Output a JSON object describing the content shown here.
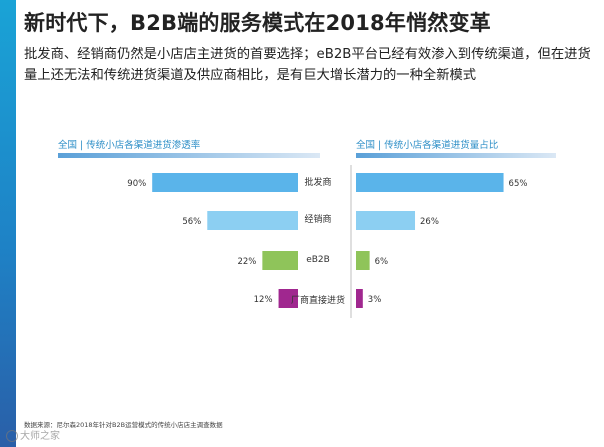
{
  "title": "新时代下，B2B端的服务模式在2018年悄然变革",
  "subtitle": "批发商、经销商仍然是小店店主进货的首要选择；eB2B平台已经有效渗入到传统渠道，但在进货量上还无法和传统进货渠道及供应商相比，是有巨大增长潜力的一种全新模式",
  "footnote": "数据来源：尼尔森2018年针对B2B运营模式的传统小店店主调查数据",
  "watermark": "大师之家",
  "colors": {
    "accent": "#2e8fc7",
    "side_strip": "#1e82c6",
    "bar_wholesaler": "#5ab4ea",
    "bar_distributor": "#8ccff2",
    "bar_eb2b": "#8fc45a",
    "bar_manufacturer": "#a0278f"
  },
  "chart_data": [
    {
      "type": "bar",
      "orientation": "horizontal",
      "direction": "right-to-left",
      "title": "全国 | 传统小店各渠道进货渗透率",
      "categories": [
        "批发商",
        "经销商",
        "eB2B",
        "厂商直接进货"
      ],
      "values": [
        90,
        56,
        22,
        12
      ],
      "value_labels": [
        "90%",
        "56%",
        "22%",
        "12%"
      ],
      "unit": "%",
      "xlim": [
        0,
        100
      ]
    },
    {
      "type": "bar",
      "orientation": "horizontal",
      "direction": "left-to-right",
      "title": "全国 | 传统小店各渠道进货量占比",
      "categories": [
        "批发商",
        "经销商",
        "eB2B",
        "厂商直接进货"
      ],
      "values": [
        65,
        26,
        6,
        3
      ],
      "value_labels": [
        "65%",
        "26%",
        "6%",
        "3%"
      ],
      "unit": "%",
      "xlim": [
        0,
        100
      ]
    }
  ]
}
